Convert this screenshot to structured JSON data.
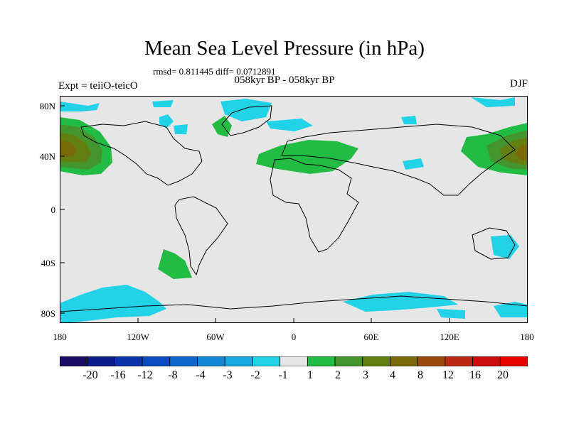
{
  "title": "Mean Sea Level Pressure (in hPa)",
  "stats": "rmsd= 0.811445 diff= 0.0712891",
  "periods": "058kyr BP - 058kyr BP",
  "experiment": "Expt = teiiO-teicO",
  "season": "DJF",
  "lat_ticks": [
    "80N",
    "40N",
    "0",
    "40S",
    "80S"
  ],
  "lon_ticks": [
    "180",
    "120W",
    "60W",
    "0",
    "60E",
    "120E",
    "180"
  ],
  "colorbar": {
    "labels": [
      "-20",
      "-16",
      "-12",
      "-8",
      "-4",
      "-3",
      "-2",
      "-1",
      "1",
      "2",
      "3",
      "4",
      "8",
      "12",
      "16",
      "20"
    ],
    "colors": [
      "#1a0c64",
      "#0d1e8a",
      "#0a34a8",
      "#0a4cc0",
      "#0e66cc",
      "#1486d6",
      "#18a8e0",
      "#22d2e6",
      "#e6e6e6",
      "#22bb44",
      "#45952e",
      "#637f12",
      "#7a6a0a",
      "#99480c",
      "#b82a14",
      "#cc0e0e",
      "#e60000"
    ]
  },
  "colors": {
    "background": "#e6e6e6",
    "negative_1": "#22d2e6",
    "positive_1": "#22bb44",
    "positive_2": "#45952e",
    "positive_3": "#637f12",
    "positive_4": "#7a6a0a"
  }
}
